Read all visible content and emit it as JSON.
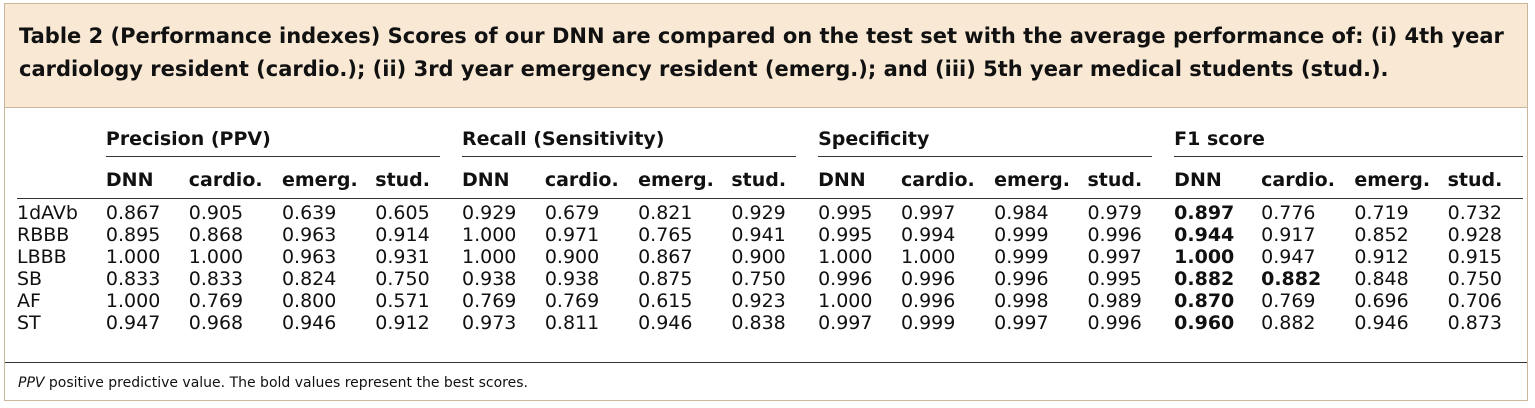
{
  "caption": "Table 2 (Performance indexes) Scores of our DNN are compared on the test set with the average performance of: (i) 4th year cardiology resident (cardio.); (ii) 3rd year emergency resident (emerg.); and (iii) 5th year medical students (stud.).",
  "groups": [
    "Precision (PPV)",
    "Recall (Sensitivity)",
    "Specificity",
    "F1 score"
  ],
  "subheaders": [
    "DNN",
    "cardio.",
    "emerg.",
    "stud."
  ],
  "rows": [
    {
      "label": "1dAVb",
      "values": [
        "0.867",
        "0.905",
        "0.639",
        "0.605",
        "0.929",
        "0.679",
        "0.821",
        "0.929",
        "0.995",
        "0.997",
        "0.984",
        "0.979",
        "0.897",
        "0.776",
        "0.719",
        "0.732"
      ]
    },
    {
      "label": "RBBB",
      "values": [
        "0.895",
        "0.868",
        "0.963",
        "0.914",
        "1.000",
        "0.971",
        "0.765",
        "0.941",
        "0.995",
        "0.994",
        "0.999",
        "0.996",
        "0.944",
        "0.917",
        "0.852",
        "0.928"
      ]
    },
    {
      "label": "LBBB",
      "values": [
        "1.000",
        "1.000",
        "0.963",
        "0.931",
        "1.000",
        "0.900",
        "0.867",
        "0.900",
        "1.000",
        "1.000",
        "0.999",
        "0.997",
        "1.000",
        "0.947",
        "0.912",
        "0.915"
      ]
    },
    {
      "label": "SB",
      "values": [
        "0.833",
        "0.833",
        "0.824",
        "0.750",
        "0.938",
        "0.938",
        "0.875",
        "0.750",
        "0.996",
        "0.996",
        "0.996",
        "0.995",
        "0.882",
        "0.882",
        "0.848",
        "0.750"
      ]
    },
    {
      "label": "AF",
      "values": [
        "1.000",
        "0.769",
        "0.800",
        "0.571",
        "0.769",
        "0.769",
        "0.615",
        "0.923",
        "1.000",
        "0.996",
        "0.998",
        "0.989",
        "0.870",
        "0.769",
        "0.696",
        "0.706"
      ]
    },
    {
      "label": "ST",
      "values": [
        "0.947",
        "0.968",
        "0.946",
        "0.912",
        "0.973",
        "0.811",
        "0.946",
        "0.838",
        "0.997",
        "0.999",
        "0.997",
        "0.996",
        "0.960",
        "0.882",
        "0.946",
        "0.873"
      ]
    }
  ],
  "bold": {
    "0": [
      12
    ],
    "1": [
      12
    ],
    "2": [
      12
    ],
    "3": [
      12,
      13
    ],
    "4": [
      12
    ],
    "5": [
      12
    ]
  },
  "footnote_term": "PPV",
  "footnote_text": " positive predictive value. The bold values represent the best scores."
}
